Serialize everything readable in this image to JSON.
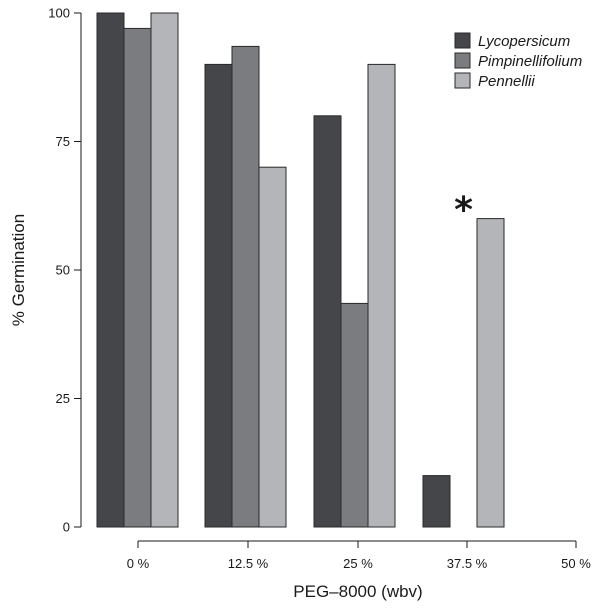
{
  "chart_data": {
    "type": "bar",
    "title": "",
    "xlabel": "PEG–8000 (wbv)",
    "ylabel": "% Germination",
    "categories": [
      "0 %",
      "12.5 %",
      "25 %",
      "37.5 %",
      "50 %"
    ],
    "series": [
      {
        "name": "Lycopersicum",
        "color": "#45464a",
        "values": [
          100,
          90,
          80,
          10,
          0
        ]
      },
      {
        "name": "Pimpinellifolium",
        "color": "#7b7c80",
        "values": [
          97,
          93.5,
          43.5,
          0,
          0
        ]
      },
      {
        "name": "Pennellii",
        "color": "#b4b5b8",
        "values": [
          100,
          70,
          90,
          60,
          0
        ]
      }
    ],
    "ylim": [
      0,
      100
    ],
    "yticks": [
      0,
      25,
      50,
      75,
      100
    ],
    "grid": false,
    "legend": "top-right",
    "annotations": [
      {
        "text": "*",
        "category": "37.5 %",
        "series": "Pennellii",
        "y": 64
      }
    ]
  }
}
